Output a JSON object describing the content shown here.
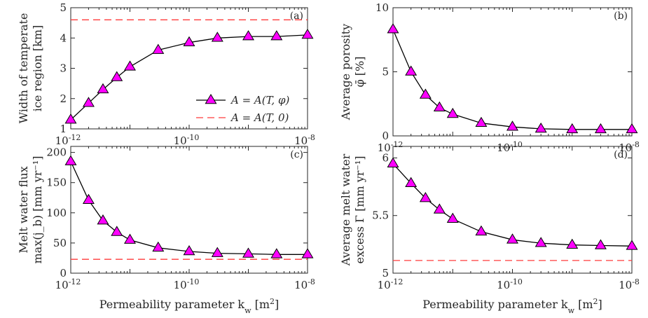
{
  "colors": {
    "marker_fill": "#ff00ff",
    "marker_edge": "#000000",
    "line": "#000000",
    "reference": "#ff3b3b",
    "axis": "#262626"
  },
  "legend": {
    "entry_1": "A = A(T, φ)",
    "entry_2": "A = A(T, 0)",
    "placement": "inside panel (a), lower-right"
  },
  "x_axis_label": "Permeability parameter k_w [m²]",
  "chart_data": [
    {
      "panel": "(a)",
      "type": "line",
      "ylabel_line1": "Width of temperate",
      "ylabel_line2": "ice region [km]",
      "xscale": "log",
      "xlim": [
        1e-12,
        1e-08
      ],
      "ylim": [
        1,
        5
      ],
      "yticks": [
        1,
        2,
        3,
        4,
        5
      ],
      "ytick_labels": [
        "1",
        "2",
        "3",
        "4",
        "5"
      ],
      "series": [
        {
          "name": "A = A(T, φ)",
          "x": [
            1e-12,
            2e-12,
            3.5e-12,
            6e-12,
            1e-11,
            3e-11,
            1e-10,
            3e-10,
            1e-09,
            3e-09,
            1e-08
          ],
          "values": [
            1.3,
            1.85,
            2.3,
            2.7,
            3.05,
            3.6,
            3.85,
            4.0,
            4.05,
            4.05,
            4.1
          ]
        },
        {
          "name": "A = A(T, 0)",
          "x": [
            1e-12,
            1e-08
          ],
          "values": [
            4.6,
            4.6
          ],
          "style": "dashed"
        }
      ]
    },
    {
      "panel": "(b)",
      "type": "line",
      "ylabel_line1": "Average porosity",
      "ylabel_line2": "φ̄ [%]",
      "xscale": "log",
      "xlim": [
        1e-12,
        1e-08
      ],
      "ylim": [
        0,
        10
      ],
      "yticks": [
        0,
        5,
        10
      ],
      "ytick_labels": [
        "0",
        "5",
        "10"
      ],
      "series": [
        {
          "name": "A = A(T, φ)",
          "x": [
            1e-12,
            2e-12,
            3.5e-12,
            6e-12,
            1e-11,
            3e-11,
            1e-10,
            3e-10,
            1e-09,
            3e-09,
            1e-08
          ],
          "values": [
            8.3,
            5.0,
            3.2,
            2.2,
            1.7,
            1.0,
            0.7,
            0.55,
            0.5,
            0.5,
            0.5
          ]
        }
      ]
    },
    {
      "panel": "(c)",
      "type": "line",
      "ylabel_line1": "Melt water flux",
      "ylabel_line2": "max(j_b) [mm yr⁻¹]",
      "xscale": "log",
      "xlim": [
        1e-12,
        1e-08
      ],
      "ylim": [
        0,
        210
      ],
      "yticks": [
        0,
        50,
        100,
        150,
        200
      ],
      "ytick_labels": [
        "0",
        "50",
        "100",
        "150",
        "200"
      ],
      "series": [
        {
          "name": "A = A(T, φ)",
          "x": [
            1e-12,
            2e-12,
            3.5e-12,
            6e-12,
            1e-11,
            3e-11,
            1e-10,
            3e-10,
            1e-09,
            3e-09,
            1e-08
          ],
          "values": [
            185,
            121,
            87,
            68,
            55,
            42,
            36,
            33,
            32,
            31,
            31
          ]
        },
        {
          "name": "A = A(T, 0)",
          "x": [
            1e-12,
            1e-08
          ],
          "values": [
            23,
            23
          ],
          "style": "dashed"
        }
      ]
    },
    {
      "panel": "(d)",
      "type": "line",
      "ylabel_line1": "Average melt water",
      "ylabel_line2": "excess Γ [mm yr⁻¹]",
      "xscale": "log",
      "xlim": [
        1e-12,
        1e-08
      ],
      "ylim": [
        5,
        6.1
      ],
      "yticks": [
        5,
        5.5,
        6
      ],
      "ytick_labels": [
        "5",
        "5.5",
        "6"
      ],
      "series": [
        {
          "name": "A = A(T, φ)",
          "x": [
            1e-12,
            2e-12,
            3.5e-12,
            6e-12,
            1e-11,
            3e-11,
            1e-10,
            3e-10,
            1e-09,
            3e-09,
            1e-08
          ],
          "values": [
            5.95,
            5.78,
            5.65,
            5.55,
            5.47,
            5.36,
            5.29,
            5.26,
            5.245,
            5.24,
            5.235
          ]
        },
        {
          "name": "A = A(T, 0)",
          "x": [
            1e-12,
            1e-08
          ],
          "values": [
            5.11,
            5.11
          ],
          "style": "dashed"
        }
      ]
    }
  ]
}
